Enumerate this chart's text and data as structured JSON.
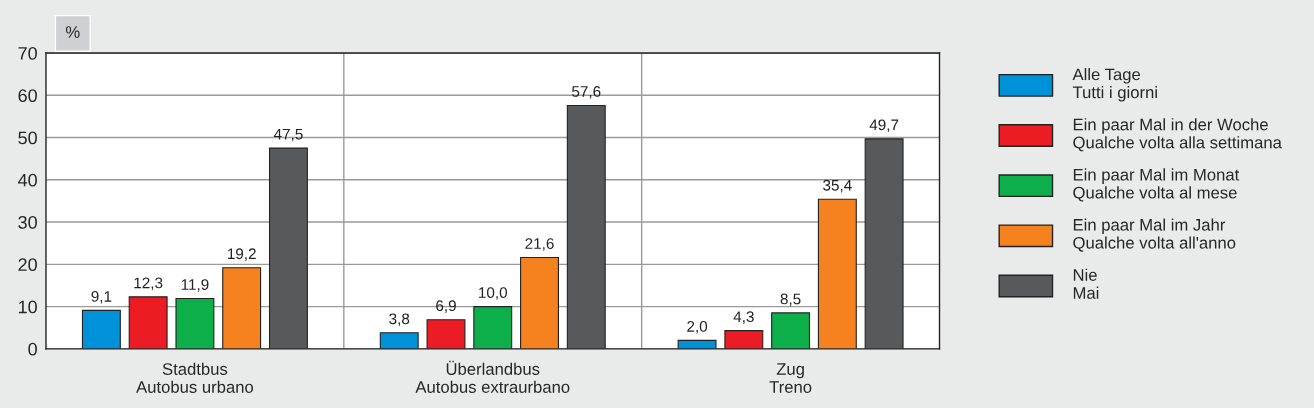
{
  "chart_data": {
    "type": "bar",
    "ylabel": "%",
    "categories": [
      "Stadtbus\nAutobus urbano",
      "Überlandbus\nAutobus extraurbano",
      "Zug\nTreno"
    ],
    "series": [
      {
        "name": "Alle Tage\nTutti i giorni",
        "color": "#0092d8",
        "values": [
          9.1,
          3.8,
          2.0
        ],
        "value_labels": [
          "9,1",
          "3,8",
          "2,0"
        ]
      },
      {
        "name": "Ein paar Mal in der Woche\nQualche volta alla settimana",
        "color": "#ec1c24",
        "values": [
          12.3,
          6.9,
          4.3
        ],
        "value_labels": [
          "12,3",
          "6,9",
          "4,3"
        ]
      },
      {
        "name": "Ein paar Mal im Monat\nQualche volta al mese",
        "color": "#0daf4b",
        "values": [
          11.9,
          10.0,
          8.5
        ],
        "value_labels": [
          "11,9",
          "10,0",
          "8,5"
        ]
      },
      {
        "name": "Ein paar Mal im Jahr\nQualche volta all'anno",
        "color": "#f5821f",
        "values": [
          19.2,
          21.6,
          35.4
        ],
        "value_labels": [
          "19,2",
          "21,6",
          "35,4"
        ]
      },
      {
        "name": "Nie\nMai",
        "color": "#58595b",
        "values": [
          47.5,
          57.6,
          49.7
        ],
        "value_labels": [
          "47,5",
          "57,6",
          "49,7"
        ]
      }
    ],
    "ylim": [
      0,
      70
    ],
    "yticks": [
      0,
      10,
      20,
      30,
      40,
      50,
      60,
      70
    ],
    "grid": true,
    "legend": "right"
  }
}
